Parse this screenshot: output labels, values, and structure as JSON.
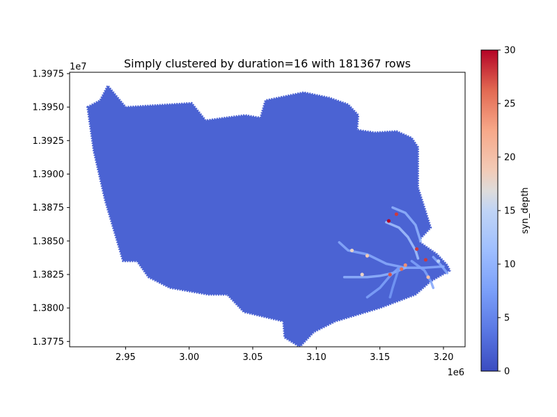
{
  "chart_data": {
    "type": "scatter",
    "title": "Simply clustered by duration=16 with 181367 rows",
    "xlabel": "",
    "ylabel": "",
    "x_offset_label": "1e6",
    "y_offset_label": "1e7",
    "xlim": [
      2.906,
      3.217
    ],
    "ylim": [
      1.3771,
      1.3976
    ],
    "x_ticks": [
      2.95,
      3.0,
      3.05,
      3.1,
      3.15,
      3.2
    ],
    "x_tick_labels": [
      "2.95",
      "3.00",
      "3.05",
      "3.10",
      "3.15",
      "3.20"
    ],
    "y_ticks": [
      1.3775,
      1.38,
      1.3825,
      1.385,
      1.3875,
      1.39,
      1.3925,
      1.395,
      1.3975
    ],
    "y_tick_labels": [
      "1.3775",
      "1.3800",
      "1.3825",
      "1.3850",
      "1.3875",
      "1.3900",
      "1.3925",
      "1.3950",
      "1.3975"
    ],
    "grid": false,
    "colormap": "coolwarm",
    "colorbar": {
      "label": "syn_depth",
      "min": 0,
      "max": 30,
      "ticks": [
        0,
        5,
        10,
        15,
        20,
        25,
        30
      ],
      "tick_labels": [
        "0",
        "5",
        "10",
        "15",
        "20",
        "25",
        "30"
      ]
    },
    "region_outline": [
      [
        2.92,
        1.395
      ],
      [
        2.93,
        1.3955
      ],
      [
        2.936,
        1.3966
      ],
      [
        2.95,
        1.395
      ],
      [
        2.985,
        1.3952
      ],
      [
        3.002,
        1.3953
      ],
      [
        3.013,
        1.394
      ],
      [
        3.028,
        1.3942
      ],
      [
        3.044,
        1.3944
      ],
      [
        3.056,
        1.3942
      ],
      [
        3.06,
        1.3955
      ],
      [
        3.09,
        1.3961
      ],
      [
        3.11,
        1.3957
      ],
      [
        3.125,
        1.3952
      ],
      [
        3.133,
        1.3944
      ],
      [
        3.132,
        1.3933
      ],
      [
        3.146,
        1.3931
      ],
      [
        3.163,
        1.3932
      ],
      [
        3.175,
        1.3927
      ],
      [
        3.18,
        1.392
      ],
      [
        3.18,
        1.389
      ],
      [
        3.185,
        1.3875
      ],
      [
        3.19,
        1.386
      ],
      [
        3.18,
        1.385
      ],
      [
        3.195,
        1.384
      ],
      [
        3.203,
        1.3832
      ],
      [
        3.205,
        1.3828
      ],
      [
        3.19,
        1.382
      ],
      [
        3.178,
        1.381
      ],
      [
        3.15,
        1.38
      ],
      [
        3.115,
        1.379
      ],
      [
        3.098,
        1.3782
      ],
      [
        3.087,
        1.3771
      ],
      [
        3.075,
        1.3778
      ],
      [
        3.074,
        1.379
      ],
      [
        3.043,
        1.3797
      ],
      [
        3.03,
        1.381
      ],
      [
        3.015,
        1.381
      ],
      [
        2.985,
        1.3815
      ],
      [
        2.968,
        1.3823
      ],
      [
        2.959,
        1.3835
      ],
      [
        2.948,
        1.3835
      ],
      [
        2.934,
        1.388
      ],
      [
        2.925,
        1.3917
      ],
      [
        2.92,
        1.395
      ]
    ],
    "base_value": 2,
    "channels": [
      {
        "value": 9,
        "path": [
          [
            3.118,
            1.3849
          ],
          [
            3.125,
            1.3843
          ],
          [
            3.14,
            1.384
          ],
          [
            3.155,
            1.3833
          ],
          [
            3.17,
            1.383
          ],
          [
            3.185,
            1.383
          ],
          [
            3.2,
            1.3831
          ]
        ]
      },
      {
        "value": 10,
        "path": [
          [
            3.122,
            1.3823
          ],
          [
            3.14,
            1.3823
          ],
          [
            3.15,
            1.3824
          ],
          [
            3.16,
            1.3826
          ],
          [
            3.17,
            1.383
          ]
        ]
      },
      {
        "value": 8,
        "path": [
          [
            3.14,
            1.3808
          ],
          [
            3.15,
            1.3815
          ],
          [
            3.158,
            1.3824
          ],
          [
            3.165,
            1.383
          ]
        ]
      },
      {
        "value": 12,
        "path": [
          [
            3.155,
            1.3864
          ],
          [
            3.165,
            1.386
          ],
          [
            3.172,
            1.3853
          ],
          [
            3.178,
            1.3843
          ],
          [
            3.18,
            1.3837
          ]
        ]
      },
      {
        "value": 10,
        "path": [
          [
            3.16,
            1.3875
          ],
          [
            3.17,
            1.3871
          ],
          [
            3.178,
            1.3862
          ],
          [
            3.182,
            1.385
          ]
        ]
      },
      {
        "value": 8,
        "path": [
          [
            3.175,
            1.3835
          ],
          [
            3.185,
            1.3828
          ],
          [
            3.19,
            1.382
          ],
          [
            3.192,
            1.3815
          ]
        ]
      },
      {
        "value": 7,
        "path": [
          [
            3.165,
            1.383
          ],
          [
            3.16,
            1.3815
          ],
          [
            3.158,
            1.3808
          ]
        ]
      },
      {
        "value": 9,
        "path": [
          [
            3.192,
            1.3838
          ],
          [
            3.198,
            1.3832
          ],
          [
            3.203,
            1.3826
          ]
        ]
      }
    ],
    "hotspots": [
      {
        "x": 3.157,
        "y": 1.3865,
        "value": 30
      },
      {
        "x": 3.163,
        "y": 1.387,
        "value": 28
      },
      {
        "x": 3.179,
        "y": 1.3844,
        "value": 28
      },
      {
        "x": 3.14,
        "y": 1.3839,
        "value": 19
      },
      {
        "x": 3.128,
        "y": 1.3843,
        "value": 18
      },
      {
        "x": 3.136,
        "y": 1.3825,
        "value": 18
      },
      {
        "x": 3.158,
        "y": 1.3825,
        "value": 27
      },
      {
        "x": 3.167,
        "y": 1.3829,
        "value": 26
      },
      {
        "x": 3.186,
        "y": 1.3836,
        "value": 28
      },
      {
        "x": 3.188,
        "y": 1.3823,
        "value": 20
      },
      {
        "x": 3.196,
        "y": 1.3835,
        "value": 14
      },
      {
        "x": 3.17,
        "y": 1.3832,
        "value": 24
      }
    ]
  }
}
